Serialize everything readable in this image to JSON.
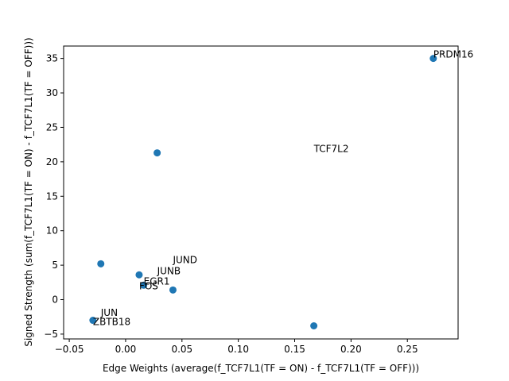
{
  "chart_data": {
    "type": "scatter",
    "title": "",
    "xlabel": "Edge Weights (average(f_TCF7L1(TF = ON) - f_TCF7L1(TF = OFF)))",
    "ylabel": "Signed Strength (sum(f_TCF7L1(TF = ON) - f_TCF7L1(TF = OFF)))",
    "xlim": [
      -0.055,
      0.295
    ],
    "ylim": [
      -5.7,
      36.8
    ],
    "xticks": [
      -0.05,
      0.0,
      0.05,
      0.1,
      0.15,
      0.2,
      0.25
    ],
    "xtick_labels": [
      "−0.05",
      "0.00",
      "0.05",
      "0.10",
      "0.15",
      "0.20",
      "0.25"
    ],
    "yticks": [
      -5,
      0,
      5,
      10,
      15,
      20,
      25,
      30,
      35
    ],
    "ytick_labels": [
      "−5",
      "0",
      "5",
      "10",
      "15",
      "20",
      "25",
      "30",
      "35"
    ],
    "grid": false,
    "marker_color": "#1f77b4",
    "points": [
      {
        "x": 0.273,
        "y": 35.0
      },
      {
        "x": 0.028,
        "y": 21.3
      },
      {
        "x": -0.022,
        "y": 5.2
      },
      {
        "x": 0.012,
        "y": 3.6
      },
      {
        "x": 0.016,
        "y": 2.1
      },
      {
        "x": 0.042,
        "y": 1.4
      },
      {
        "x": -0.029,
        "y": -3.0
      },
      {
        "x": 0.167,
        "y": -3.8
      }
    ],
    "annotations": [
      {
        "text": "PRDM16",
        "x": 0.273,
        "y": 35.0
      },
      {
        "text": "TCF7L2",
        "x": 0.167,
        "y": 21.3
      },
      {
        "text": "JUND",
        "x": 0.042,
        "y": 5.2
      },
      {
        "text": "JUNB",
        "x": 0.028,
        "y": 3.6
      },
      {
        "text": "EGR1",
        "x": 0.016,
        "y": 2.1
      },
      {
        "text": "FOS",
        "x": 0.012,
        "y": 1.4
      },
      {
        "text": "JUN",
        "x": -0.022,
        "y": -2.5
      },
      {
        "text": "ZBTB18",
        "x": -0.029,
        "y": -3.8
      }
    ]
  }
}
